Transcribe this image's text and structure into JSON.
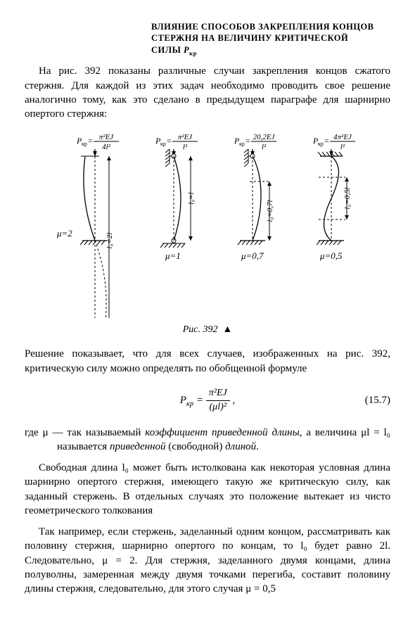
{
  "title_line1": "ВЛИЯНИЕ СПОСОБОВ ЗАКРЕПЛЕНИЯ КОНЦОВ",
  "title_line2": "СТЕРЖНЯ НА ВЕЛИЧИНУ КРИТИЧЕСКОЙ",
  "title_line3_a": "СИЛЫ ",
  "title_line3_b": "P",
  "title_line3_c": "кр",
  "para1": "На рис. 392 показаны различные случаи закрепления концов сжатого стержня. Для каждой из этих задач необходимо проводить свое решение аналогично тому, как это сделано в предыдущем параграфе для шарнирно опертого стержня:",
  "figure": {
    "caption_prefix": "Рис. ",
    "caption_num": "392",
    "triangle": "▲",
    "columns": [
      {
        "formula_lhs": "P",
        "formula_sub": "кр",
        "formula_num": "π²EJ",
        "formula_den": "4l²",
        "mu": "μ=2",
        "len_label": "l₀=2l",
        "top_support": "free",
        "bottom_support": "fixed",
        "shape": "half-wave-extended"
      },
      {
        "formula_lhs": "P",
        "formula_sub": "кр",
        "formula_num": "π²EJ",
        "formula_den": "l²",
        "mu": "μ=1",
        "len_label": "l₀=l",
        "top_support": "pin",
        "bottom_support": "pin-ground",
        "shape": "half-wave"
      },
      {
        "formula_lhs": "P",
        "formula_sub": "кр",
        "formula_num": "20,2EJ",
        "formula_den": "l²",
        "mu": "μ=0,7",
        "len_label": "l₀=0,7l",
        "top_support": "pin",
        "bottom_support": "fixed",
        "shape": "clamped-pin"
      },
      {
        "formula_lhs": "P",
        "formula_sub": "кр",
        "formula_num": "4π²EJ",
        "formula_den": "l²",
        "mu": "μ=0,5",
        "len_label": "l₀=0,5l",
        "top_support": "fixed-top",
        "bottom_support": "fixed",
        "shape": "full-wave"
      }
    ],
    "stroke": "#000000",
    "stroke_width": 1.3,
    "dash": "3,3",
    "hatch_len": 6
  },
  "para2": "Решение показывает, что для всех случаев, изображенных на рис. 392, критическую силу можно определять по обобщенной формуле",
  "eq": {
    "lhs": "P",
    "lhs_sub": "кр",
    "num": "π²EJ",
    "den": "(μl)²",
    "number": "(15.7)"
  },
  "para3_a": "где μ — так называемый ",
  "para3_b": "коэффициент приведенной длины",
  "para3_c": ", а величина μl = l₀ называется ",
  "para3_d": "приведенной",
  "para3_e": " (свободной) ",
  "para3_f": "длиной",
  "para3_g": ".",
  "para4": "Свободная длина l₀ может быть истолкована как некоторая условная длина шарнирно опертого стержня, имеющего такую же критическую силу, как заданный стержень. В отдельных случаях это положение вытекает из чисто геометрического толкования",
  "para5": "Так например, если стержень, заделанный одним концом, рассматривать как половину стержня, шарнирно опертого по концам, то l₀ будет равно 2l. Следовательно, μ = 2. Для стержня, заделанного двумя концами, длина полуволны, замеренная между двумя точками перегиба, составит половину длины стержня, следовательно, для этого случая μ = 0,5"
}
